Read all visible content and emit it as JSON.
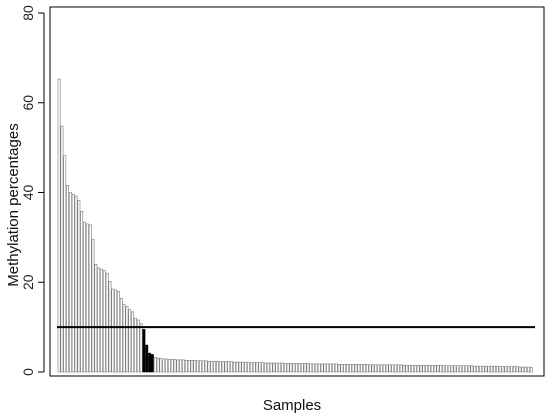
{
  "chart_data": {
    "type": "bar",
    "title": "",
    "xlabel": "Samples",
    "ylabel": "Methylation percentages",
    "ylim": [
      0,
      80
    ],
    "yticks": [
      0,
      20,
      40,
      60,
      80
    ],
    "grid": false,
    "legend": "none",
    "threshold": {
      "value": 10,
      "color": "#000000"
    },
    "bar_colors": {
      "above": "#ffffff",
      "near": "#000000",
      "below": "#ffffff",
      "edge": "#777777"
    },
    "values": [
      65.3,
      54.8,
      48.2,
      41.6,
      40.0,
      39.6,
      39.2,
      38.2,
      35.8,
      33.4,
      33.0,
      32.8,
      29.5,
      24.0,
      23.2,
      22.9,
      22.6,
      22.0,
      20.2,
      18.5,
      18.3,
      18.0,
      16.4,
      15.0,
      14.6,
      13.9,
      13.4,
      12.0,
      11.6,
      10.8,
      9.5,
      6.0,
      4.2,
      3.9,
      3.2,
      3.1,
      3.0,
      2.9,
      2.9,
      2.8,
      2.8,
      2.8,
      2.7,
      2.7,
      2.7,
      2.6,
      2.6,
      2.6,
      2.6,
      2.5,
      2.5,
      2.5,
      2.5,
      2.4,
      2.4,
      2.4,
      2.4,
      2.3,
      2.3,
      2.3,
      2.3,
      2.3,
      2.2,
      2.2,
      2.2,
      2.2,
      2.2,
      2.1,
      2.1,
      2.1,
      2.1,
      2.1,
      2.1,
      2.0,
      2.0,
      2.0,
      2.0,
      2.0,
      2.0,
      2.0,
      1.9,
      1.9,
      1.9,
      1.9,
      1.9,
      1.9,
      1.9,
      1.9,
      1.9,
      1.8,
      1.8,
      1.8,
      1.8,
      1.8,
      1.8,
      1.8,
      1.8,
      1.8,
      1.8,
      1.7,
      1.7,
      1.7,
      1.7,
      1.7,
      1.7,
      1.7,
      1.7,
      1.7,
      1.7,
      1.7,
      1.6,
      1.6,
      1.6,
      1.6,
      1.6,
      1.6,
      1.6,
      1.6,
      1.6,
      1.6,
      1.6,
      1.6,
      1.5,
      1.5,
      1.5,
      1.5,
      1.5,
      1.5,
      1.5,
      1.5,
      1.5,
      1.5,
      1.5,
      1.5,
      1.5,
      1.5,
      1.4,
      1.4,
      1.4,
      1.4,
      1.4,
      1.4,
      1.4,
      1.4,
      1.4,
      1.4,
      1.4,
      1.3,
      1.3,
      1.3,
      1.3,
      1.3,
      1.3,
      1.3,
      1.3,
      1.3,
      1.2,
      1.2,
      1.2,
      1.2,
      1.2,
      1.2,
      1.2,
      1.1,
      1.1,
      1.1,
      1.1,
      1.0
    ]
  }
}
